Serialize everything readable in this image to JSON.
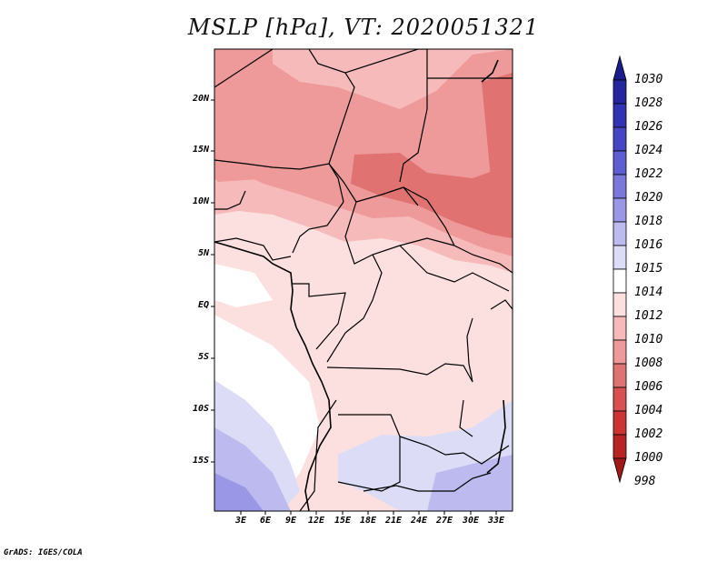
{
  "title": "MSLP [hPa], VT: 2020051321",
  "footer": "GrADS: IGES/COLA",
  "map": {
    "lat_labels": [
      "20N",
      "15N",
      "10N",
      "5N",
      "EQ",
      "5S",
      "10S",
      "15S"
    ],
    "lon_labels": [
      "3E",
      "6E",
      "9E",
      "12E",
      "15E",
      "18E",
      "21E",
      "24E",
      "27E",
      "30E",
      "33E"
    ]
  },
  "colorbar": {
    "labels": [
      "1030",
      "1028",
      "1026",
      "1024",
      "1022",
      "1020",
      "1018",
      "1016",
      "1015",
      "1014",
      "1012",
      "1010",
      "1008",
      "1006",
      "1004",
      "1002",
      "1000",
      "998"
    ],
    "colors": [
      "#1c1c8c",
      "#2525a0",
      "#3232b4",
      "#4646c4",
      "#5e5ed2",
      "#7a78dc",
      "#9a98e6",
      "#bcbaee",
      "#dcdcf6",
      "#ffffff",
      "#fce0e0",
      "#f6baba",
      "#ee9a9a",
      "#e07272",
      "#d85050",
      "#cc3434",
      "#b82424",
      "#a01818"
    ]
  }
}
